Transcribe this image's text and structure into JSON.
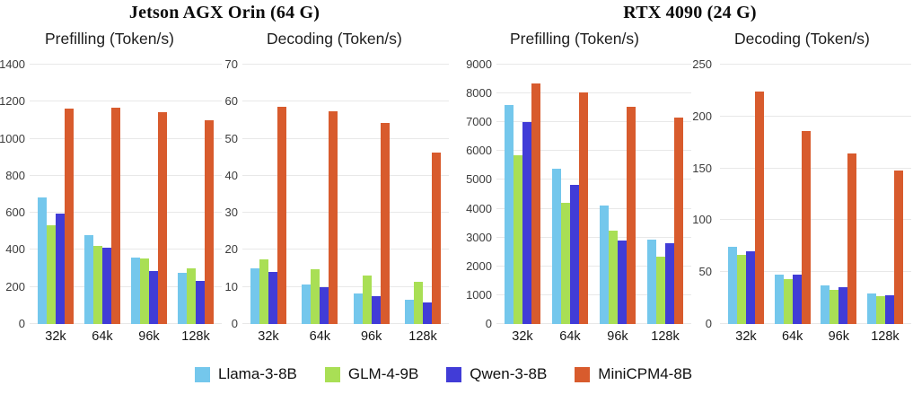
{
  "figure": {
    "group_titles": [
      "Jetson AGX Orin (64 G)",
      "RTX 4090 (24 G)"
    ]
  },
  "legend": [
    {
      "label": "Llama-3-8B",
      "color": "#74C7EC"
    },
    {
      "label": "GLM-4-9B",
      "color": "#A9DF55"
    },
    {
      "label": "Qwen-3-8B",
      "color": "#413CD7"
    },
    {
      "label": "MiniCPM4-8B",
      "color": "#D85B2D"
    }
  ],
  "chart_data": [
    {
      "type": "bar",
      "device": "Jetson AGX Orin (64 G)",
      "title": "Prefilling (Token/s)",
      "categories": [
        "32k",
        "64k",
        "96k",
        "128k"
      ],
      "ylim": [
        0,
        1400
      ],
      "ytick_step": 200,
      "grid": true,
      "series": [
        {
          "name": "Llama-3-8B",
          "values": [
            685,
            480,
            357,
            275
          ]
        },
        {
          "name": "GLM-4-9B",
          "values": [
            533,
            422,
            352,
            300
          ]
        },
        {
          "name": "Qwen-3-8B",
          "values": [
            597,
            410,
            288,
            234
          ]
        },
        {
          "name": "MiniCPM4-8B",
          "values": [
            1163,
            1166,
            1145,
            1098
          ]
        }
      ]
    },
    {
      "type": "bar",
      "device": "Jetson AGX Orin (64 G)",
      "title": "Decoding (Token/s)",
      "categories": [
        "32k",
        "64k",
        "96k",
        "128k"
      ],
      "ylim": [
        0,
        70
      ],
      "ytick_step": 10,
      "grid": true,
      "series": [
        {
          "name": "Llama-3-8B",
          "values": [
            15,
            10.7,
            8.2,
            6.6
          ]
        },
        {
          "name": "GLM-4-9B",
          "values": [
            17.5,
            14.8,
            13,
            11.3
          ]
        },
        {
          "name": "Qwen-3-8B",
          "values": [
            14,
            9.9,
            7.4,
            5.9
          ]
        },
        {
          "name": "MiniCPM4-8B",
          "values": [
            58.7,
            57.4,
            54.2,
            46.2
          ]
        }
      ]
    },
    {
      "type": "bar",
      "device": "RTX 4090 (24 G)",
      "title": "Prefilling (Token/s)",
      "categories": [
        "32k",
        "64k",
        "96k",
        "128k"
      ],
      "ylim": [
        0,
        9000
      ],
      "ytick_step": 1000,
      "grid": true,
      "series": [
        {
          "name": "Llama-3-8B",
          "values": [
            7600,
            5400,
            4100,
            2930
          ]
        },
        {
          "name": "GLM-4-9B",
          "values": [
            5850,
            4210,
            3250,
            2340
          ]
        },
        {
          "name": "Qwen-3-8B",
          "values": [
            7010,
            4830,
            2900,
            2790
          ]
        },
        {
          "name": "MiniCPM4-8B",
          "values": [
            8350,
            8050,
            7550,
            7160
          ]
        }
      ]
    },
    {
      "type": "bar",
      "device": "RTX 4090 (24 G)",
      "title": "Decoding (Token/s)",
      "categories": [
        "32k",
        "64k",
        "96k",
        "128k"
      ],
      "ylim": [
        0,
        250
      ],
      "ytick_step": 50,
      "grid": true,
      "series": [
        {
          "name": "Llama-3-8B",
          "values": [
            74,
            48,
            37,
            29.5
          ]
        },
        {
          "name": "GLM-4-9B",
          "values": [
            66.5,
            43,
            33,
            26.5
          ]
        },
        {
          "name": "Qwen-3-8B",
          "values": [
            70,
            48,
            35.5,
            28
          ]
        },
        {
          "name": "MiniCPM4-8B",
          "values": [
            224,
            186,
            164,
            148
          ]
        }
      ]
    }
  ]
}
